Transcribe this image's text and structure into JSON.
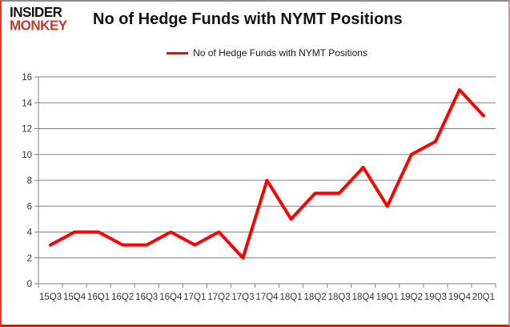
{
  "logo": {
    "line1": "INSIDER",
    "line2": "MONKEY",
    "line1_color": "#141414",
    "line2_color": "#c0392b"
  },
  "header": {
    "title": "No of Hedge Funds with NYMT Positions"
  },
  "legend": {
    "label": "No of Hedge Funds with NYMT Positions",
    "line_color": "#ff0000",
    "position": "top"
  },
  "chart_data": {
    "type": "line",
    "title": "No of Hedge Funds with NYMT Positions",
    "categories": [
      "15Q3",
      "15Q4",
      "16Q1",
      "16Q2",
      "16Q3",
      "16Q4",
      "17Q1",
      "17Q2",
      "17Q3",
      "17Q4",
      "18Q1",
      "18Q2",
      "18Q3",
      "18Q4",
      "19Q1",
      "19Q2",
      "19Q3",
      "19Q4",
      "20Q1"
    ],
    "series": [
      {
        "name": "No of Hedge Funds with NYMT Positions",
        "values": [
          3,
          4,
          4,
          3,
          3,
          4,
          3,
          4,
          2,
          8,
          5,
          7,
          7,
          9,
          6,
          10,
          11,
          15,
          13
        ]
      }
    ],
    "xlabel": "",
    "ylabel": "",
    "ylim": [
      0,
      16
    ],
    "ytick_step": 2,
    "yticks": [
      0,
      2,
      4,
      6,
      8,
      10,
      12,
      14,
      16
    ],
    "grid": "horizontal",
    "legend_position": "top",
    "line_color": "#ff0000",
    "grid_color": "#808080",
    "axis_color": "#808080",
    "label_color": "#333333"
  }
}
